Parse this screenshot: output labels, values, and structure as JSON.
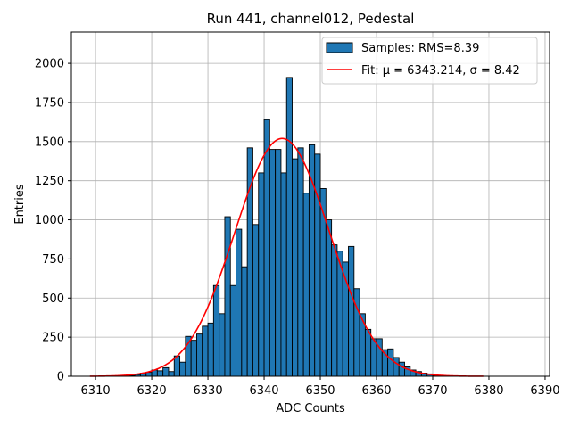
{
  "chart_data": {
    "type": "bar",
    "title": "Run 441, channel012, Pedestal",
    "xlabel": "ADC Counts",
    "ylabel": "Entries",
    "xlim": [
      6305.7,
      6390.8
    ],
    "ylim": [
      0,
      2200
    ],
    "xticks": [
      6310,
      6320,
      6330,
      6340,
      6350,
      6360,
      6370,
      6380,
      6390
    ],
    "yticks": [
      0,
      250,
      500,
      750,
      1000,
      1250,
      1500,
      1750,
      2000
    ],
    "grid": true,
    "legend_position": "top-right",
    "bin_width": 1,
    "series": [
      {
        "name": "Samples: RMS=8.39",
        "kind": "histogram",
        "color": "#1f77b4",
        "edge_color": "#000000",
        "bin_left_edges": [
          6316,
          6317,
          6318,
          6319,
          6320,
          6321,
          6322,
          6323,
          6324,
          6325,
          6326,
          6327,
          6328,
          6329,
          6330,
          6331,
          6332,
          6333,
          6334,
          6335,
          6336,
          6337,
          6338,
          6339,
          6340,
          6341,
          6342,
          6343,
          6344,
          6345,
          6346,
          6347,
          6348,
          6349,
          6350,
          6351,
          6352,
          6353,
          6354,
          6355,
          6356,
          6357,
          6358,
          6359,
          6360,
          6361,
          6362,
          6363,
          6364,
          6365,
          6366,
          6367,
          6368,
          6369,
          6370
        ],
        "values": [
          5,
          10,
          20,
          25,
          40,
          35,
          55,
          30,
          130,
          90,
          255,
          230,
          270,
          320,
          340,
          580,
          400,
          1020,
          580,
          940,
          700,
          1460,
          970,
          1300,
          1640,
          1450,
          1450,
          1300,
          1910,
          1390,
          1460,
          1170,
          1480,
          1420,
          1200,
          1000,
          840,
          800,
          730,
          830,
          560,
          400,
          300,
          240,
          240,
          170,
          175,
          120,
          90,
          60,
          40,
          30,
          20,
          15,
          5
        ]
      },
      {
        "name": "Fit: μ = 6343.214, σ = 8.42",
        "kind": "line",
        "color": "#ff0000",
        "mu": 6343.214,
        "sigma": 8.42,
        "amplitude": 1520,
        "x_range": [
          6309,
          6379
        ]
      }
    ]
  }
}
